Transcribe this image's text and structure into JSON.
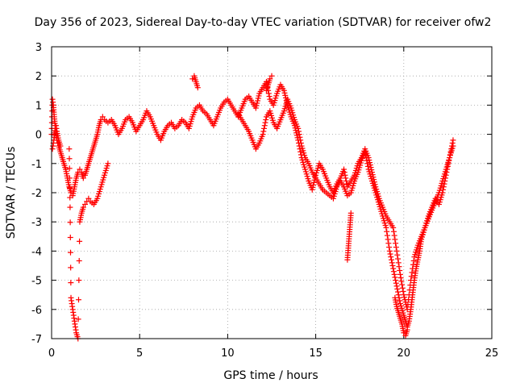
{
  "chart_data": {
    "type": "scatter",
    "title": "Day 356 of 2023, Sidereal Day-to-day VTEC variation (SDTVAR) for receiver ofw2",
    "xlabel": "GPS time / hours",
    "ylabel": "SDTVAR / TECUs",
    "xlim": [
      0,
      25
    ],
    "ylim": [
      -7,
      3
    ],
    "xticks": [
      "0",
      "5",
      "10",
      "15",
      "20",
      "25"
    ],
    "yticks": [
      "3",
      "2",
      "1",
      "0",
      "-1",
      "-2",
      "-3",
      "-4",
      "-5",
      "-6",
      "-7"
    ],
    "grid": true,
    "marker": "+",
    "color": "#ff0000",
    "series": [
      {
        "name": "SDTVAR",
        "x": [
          0.0,
          0.05,
          0.1,
          0.15,
          0.2,
          0.25,
          0.3,
          0.35,
          0.4,
          0.5,
          0.6,
          0.7,
          0.8,
          0.9,
          1.0,
          1.1,
          1.2,
          1.3,
          1.4,
          1.5,
          1.6,
          1.7,
          1.8,
          1.9,
          2.0,
          2.1,
          2.2,
          2.3,
          2.4,
          2.5,
          2.6,
          2.7,
          2.8,
          2.9,
          3.0,
          3.2,
          3.4,
          3.6,
          3.8,
          4.0,
          4.2,
          4.4,
          4.6,
          4.8,
          5.0,
          5.2,
          5.4,
          5.6,
          5.8,
          6.0,
          6.2,
          6.4,
          6.6,
          6.8,
          7.0,
          7.2,
          7.4,
          7.6,
          7.8,
          8.0,
          8.2,
          8.4,
          8.6,
          8.8,
          9.0,
          9.2,
          9.4,
          9.6,
          9.8,
          10.0,
          10.2,
          10.4,
          10.6,
          10.8,
          11.0,
          11.2,
          11.4,
          11.6,
          11.8,
          12.0,
          12.2,
          12.4,
          12.6,
          12.8,
          13.0,
          13.2,
          13.4,
          13.6,
          13.8,
          14.0,
          14.2,
          14.4,
          14.6,
          14.8,
          15.0,
          15.2,
          15.4,
          15.6,
          15.8,
          16.0,
          16.2,
          16.4,
          16.6,
          16.8,
          17.0,
          17.2,
          17.4,
          17.6,
          17.8,
          18.0,
          18.2,
          18.4,
          18.6,
          18.8,
          19.0,
          19.2,
          19.4,
          19.6,
          19.8,
          20.0,
          20.2,
          20.4,
          20.6,
          20.8,
          21.0,
          21.2,
          21.4,
          21.6,
          21.8,
          22.0,
          22.2,
          22.4,
          22.6,
          22.8,
          0.05,
          0.1,
          0.15,
          0.2,
          0.25,
          0.3,
          0.4,
          0.5,
          1.0,
          1.05,
          1.1,
          1.15,
          1.2,
          1.25,
          1.3,
          1.35,
          1.4,
          1.5,
          1.6,
          1.7,
          1.8,
          1.9,
          2.0,
          2.1,
          2.2,
          2.4,
          2.6,
          2.8,
          3.0,
          3.2,
          8.0,
          8.1,
          8.2,
          8.3,
          10.6,
          10.8,
          11.0,
          11.2,
          11.4,
          11.6,
          11.8,
          12.0,
          12.2,
          12.4,
          12.6,
          12.8,
          13.0,
          13.2,
          13.4,
          13.6,
          13.8,
          14.0,
          14.2,
          14.4,
          14.6,
          14.8,
          15.0,
          15.2,
          15.4,
          15.6,
          15.8,
          16.0,
          16.2,
          16.4,
          16.6,
          16.8,
          17.0,
          17.2,
          17.4,
          17.6,
          17.8,
          18.0,
          18.2,
          18.4,
          18.6,
          18.8,
          19.0,
          19.2,
          19.4,
          19.6,
          19.8,
          20.0,
          20.1,
          20.2,
          20.3,
          20.4,
          20.5,
          20.6,
          20.7,
          20.8,
          20.9,
          21.0,
          21.2,
          21.4,
          21.6,
          21.8,
          22.0,
          22.2,
          22.4,
          22.6,
          22.8,
          16.8,
          16.85,
          16.9,
          16.95,
          17.0,
          19.5,
          19.6,
          19.7,
          19.8,
          19.9,
          20.0,
          20.1,
          20.2,
          12.2,
          12.3,
          12.4,
          12.5
        ],
        "y": [
          0.0,
          1.2,
          1.0,
          0.6,
          0.3,
          0.1,
          -0.2,
          -0.3,
          -0.4,
          -0.6,
          -0.8,
          -1.0,
          -1.2,
          -1.5,
          -1.8,
          -2.0,
          -2.1,
          -1.8,
          -1.5,
          -1.3,
          -1.2,
          -1.3,
          -1.5,
          -1.4,
          -1.2,
          -1.0,
          -0.8,
          -0.6,
          -0.4,
          -0.2,
          0.0,
          0.3,
          0.5,
          0.6,
          0.5,
          0.4,
          0.5,
          0.3,
          0.0,
          0.2,
          0.5,
          0.6,
          0.4,
          0.1,
          0.3,
          0.5,
          0.8,
          0.6,
          0.3,
          0.0,
          -0.2,
          0.1,
          0.3,
          0.4,
          0.2,
          0.3,
          0.5,
          0.4,
          0.2,
          0.6,
          0.9,
          1.0,
          0.8,
          0.7,
          0.5,
          0.3,
          0.6,
          0.9,
          1.1,
          1.2,
          1.0,
          0.8,
          0.6,
          0.9,
          1.2,
          1.3,
          1.1,
          0.9,
          1.4,
          1.6,
          1.8,
          1.2,
          1.0,
          1.4,
          1.7,
          1.5,
          1.0,
          0.6,
          0.3,
          -0.2,
          -0.8,
          -1.2,
          -1.6,
          -1.9,
          -1.4,
          -1.0,
          -1.2,
          -1.5,
          -1.8,
          -2.0,
          -1.7,
          -1.5,
          -1.2,
          -1.8,
          -1.6,
          -1.4,
          -1.0,
          -0.8,
          -0.5,
          -0.8,
          -1.3,
          -1.8,
          -2.2,
          -2.5,
          -2.8,
          -3.0,
          -3.2,
          -4.0,
          -4.8,
          -5.5,
          -6.0,
          -5.0,
          -4.2,
          -3.8,
          -3.5,
          -3.2,
          -2.8,
          -2.5,
          -2.2,
          -2.4,
          -2.0,
          -1.4,
          -0.8,
          -0.2,
          -0.5,
          -0.3,
          -0.1,
          0.2,
          0.3,
          0.1,
          -0.2,
          -0.4,
          -0.5,
          -2.5,
          -5.6,
          -5.8,
          -6.0,
          -6.2,
          -6.4,
          -6.6,
          -6.8,
          -7.0,
          -3.0,
          -2.7,
          -2.5,
          -2.4,
          -2.3,
          -2.2,
          -2.3,
          -2.4,
          -2.2,
          -1.8,
          -1.4,
          -1.0,
          1.9,
          2.0,
          1.8,
          1.6,
          0.7,
          0.5,
          0.3,
          0.1,
          -0.2,
          -0.5,
          -0.3,
          0.0,
          0.6,
          0.8,
          0.4,
          0.2,
          0.5,
          0.8,
          1.2,
          0.9,
          0.5,
          0.2,
          -0.4,
          -0.8,
          -1.0,
          -1.3,
          -1.5,
          -1.7,
          -1.9,
          -2.0,
          -2.1,
          -2.2,
          -1.8,
          -1.6,
          -1.8,
          -2.1,
          -2.0,
          -1.6,
          -1.3,
          -0.9,
          -0.6,
          -1.2,
          -1.6,
          -2.0,
          -2.4,
          -2.8,
          -3.2,
          -4.0,
          -4.6,
          -5.2,
          -5.8,
          -6.2,
          -6.4,
          -6.6,
          -6.4,
          -6.0,
          -5.5,
          -5.0,
          -4.6,
          -4.3,
          -4.0,
          -3.6,
          -3.2,
          -2.9,
          -2.6,
          -2.3,
          -2.0,
          -1.6,
          -1.2,
          -0.8,
          -0.4,
          -4.3,
          -3.9,
          -3.5,
          -3.1,
          -2.7,
          -5.6,
          -5.9,
          -6.1,
          -6.3,
          -6.5,
          -6.8,
          -6.9,
          -6.7,
          1.5,
          1.7,
          1.9,
          2.0
        ]
      }
    ]
  }
}
